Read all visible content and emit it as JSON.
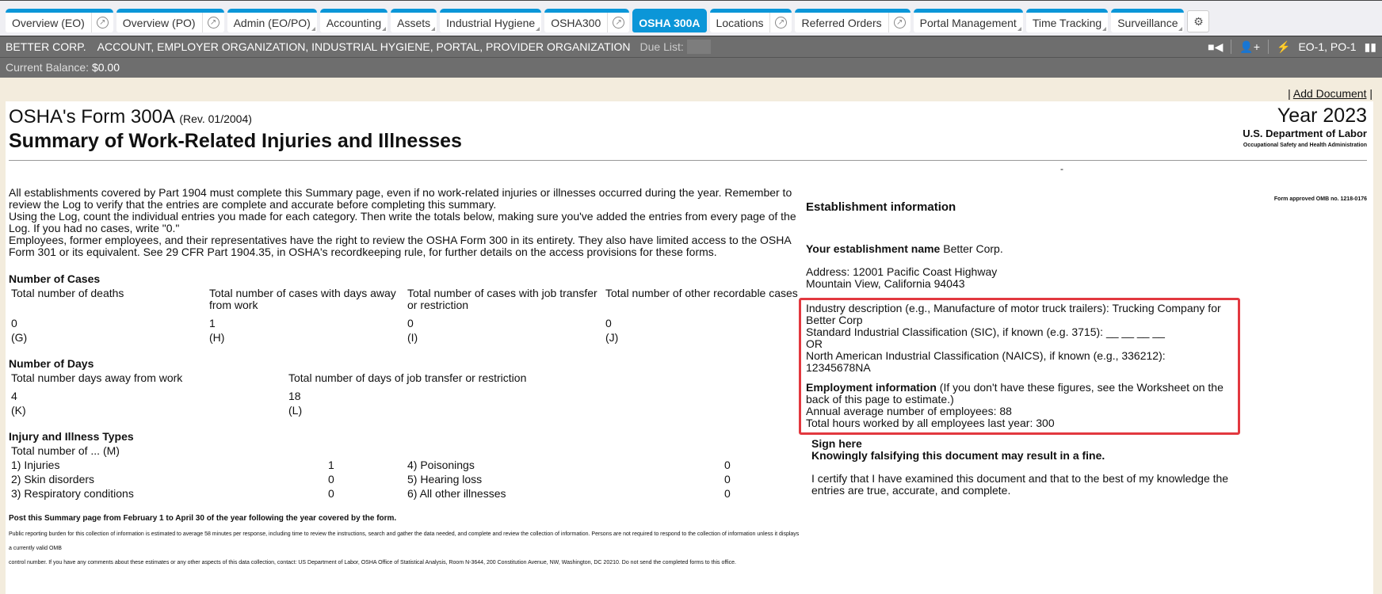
{
  "tabs": [
    {
      "label": "Overview (EO)",
      "ext": true
    },
    {
      "label": "Overview (PO)",
      "ext": true
    },
    {
      "label": "Admin (EO/PO)",
      "menu": true
    },
    {
      "label": "Accounting",
      "menu": true
    },
    {
      "label": "Assets",
      "menu": true
    },
    {
      "label": "Industrial Hygiene",
      "menu": true
    },
    {
      "label": "OSHA300",
      "ext": true
    },
    {
      "label": "OSHA 300A",
      "active": true
    },
    {
      "label": "Locations",
      "ext": true
    },
    {
      "label": "Referred Orders",
      "ext": true
    },
    {
      "label": "Portal Management",
      "menu": true
    },
    {
      "label": "Time Tracking",
      "menu": true
    },
    {
      "label": "Surveillance",
      "menu": true
    }
  ],
  "header": {
    "company": "BETTER CORP.",
    "roles": "ACCOUNT, EMPLOYER ORGANIZATION, INDUSTRIAL HYGIENE, PORTAL, PROVIDER ORGANIZATION",
    "due_list_label": "Due List:",
    "org_codes": "EO-1, PO-1",
    "balance_label": "Current Balance:",
    "balance_value": "$0.00"
  },
  "actions": {
    "add_document": "Add Document"
  },
  "form": {
    "title": "OSHA's Form 300A",
    "rev": "(Rev. 01/2004)",
    "subtitle": "Summary of Work-Related Injuries and Illnesses",
    "year": "Year 2023",
    "dept": "U.S. Department of Labor",
    "agency": "Occupational Safety and Health Administration",
    "omb": "Form approved OMB no. 1218-0176",
    "intro": [
      "All establishments covered by Part 1904 must complete this Summary page, even if no work-related injuries or illnesses occurred during the year. Remember to review the Log to verify that the entries are complete and accurate before completing this summary.",
      "Using the Log, count the individual entries you made for each category. Then write the totals below, making sure you've added the entries from every page of the Log. If you had no cases, write \"0.\"",
      "Employees, former employees, and their representatives have the right to review the OSHA Form 300 in its entirety. They also have limited access to the OSHA Form 301 or its equivalent. See 29 CFR Part 1904.35, in OSHA's recordkeeping rule, for further details on the access provisions for these forms."
    ],
    "cases": {
      "title": "Number of Cases",
      "items": [
        {
          "label": "Total number of deaths",
          "value": "0",
          "code": "(G)"
        },
        {
          "label": "Total number of cases with days away from work",
          "value": "1",
          "code": "(H)"
        },
        {
          "label": "Total number of cases with job transfer or restriction",
          "value": "0",
          "code": "(I)"
        },
        {
          "label": "Total number of other recordable cases",
          "value": "0",
          "code": "(J)"
        }
      ]
    },
    "days": {
      "title": "Number of Days",
      "items": [
        {
          "label": "Total number days away from work",
          "value": "4",
          "code": "(K)"
        },
        {
          "label": "Total number of days of job transfer or restriction",
          "value": "18",
          "code": "(L)"
        }
      ]
    },
    "types": {
      "title": "Injury and Illness Types",
      "sub": "Total number of ... (M)",
      "items": [
        {
          "label": "1) Injuries",
          "value": "1"
        },
        {
          "label": "4) Poisonings",
          "value": "0"
        },
        {
          "label": "2) Skin disorders",
          "value": "0"
        },
        {
          "label": "5) Hearing loss",
          "value": "0"
        },
        {
          "label": "3) Respiratory conditions",
          "value": "0"
        },
        {
          "label": "6) All other illnesses",
          "value": "0"
        }
      ]
    },
    "post": "Post this Summary page from February 1 to April 30 of the year following the year covered by the form.",
    "fine1": "Public reporting burden for this collection of information is estimated to average 58 minutes per response, including time to review the instructions, search and gather the data needed, and complete and review the collection of information. Persons are not required to respond to the collection of information unless it displays a currently valid OMB",
    "fine2": "control number. If you have any comments about these estimates or any other aspects of this data collection, contact: US Department of Labor, OSHA Office of Statistical Analysis, Room N-3644, 200 Constitution Avenue, NW, Washington, DC 20210. Do not send the completed forms to this office."
  },
  "establishment": {
    "title": "Establishment information",
    "name_label": "Your establishment name",
    "name": "Better Corp.",
    "address1": "Address: 12001 Pacific Coast Highway",
    "address2": "Mountain View, California 94043",
    "industry": "Industry description (e.g., Manufacture of motor truck trailers): Trucking Company for Better Corp",
    "sic": "Standard Industrial Classification (SIC), if known (e.g. 3715): __ __ __ __",
    "or": "OR",
    "naics": "North American Industrial Classification (NAICS), if known (e.g., 336212): 12345678NA",
    "emp_title": "Employment information",
    "emp_note": "(If you don't have these figures, see the Worksheet on the back of this page to estimate.)",
    "avg_emp": "Annual average number of employees: 88",
    "hours": "Total hours worked by all employees last year: 300",
    "sign_title": "Sign here",
    "sign_warn": "Knowingly falsifying this document may result in a fine.",
    "certify": "I certify that I have examined this document and that to the best of my knowledge the entries are true, accurate, and complete."
  },
  "colors": {
    "tab_accent": "#0b96d8",
    "highlight": "#e2383f",
    "header_bar": "#6e6e6e"
  }
}
